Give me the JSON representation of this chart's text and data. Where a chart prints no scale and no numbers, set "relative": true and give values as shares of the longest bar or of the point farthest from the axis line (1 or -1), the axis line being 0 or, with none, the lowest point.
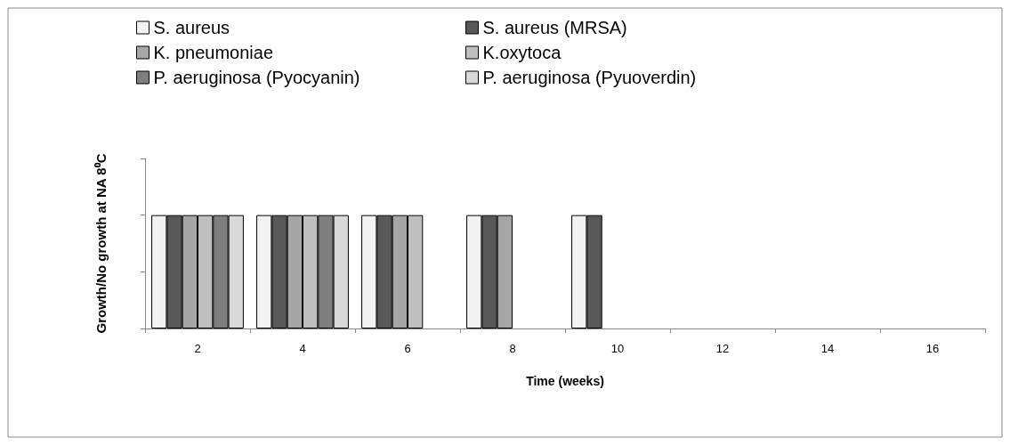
{
  "chart_data": {
    "type": "bar",
    "relative": true,
    "xlabel": "Time (weeks)",
    "ylabel": "Growth/No growth at NA 8⁰C",
    "legend": "top",
    "categories": [
      "2",
      "4",
      "6",
      "8",
      "10",
      "12",
      "14",
      "16"
    ],
    "series": [
      {
        "name": "S. aureus",
        "color": "#f2f2f2",
        "values": [
          1,
          1,
          1,
          1,
          1,
          0,
          0,
          0
        ]
      },
      {
        "name": "S. aureus (MRSA)",
        "color": "#595959",
        "values": [
          1,
          1,
          1,
          1,
          1,
          0,
          0,
          0
        ]
      },
      {
        "name": "K. pneumoniae",
        "color": "#a6a6a6",
        "values": [
          1,
          1,
          1,
          1,
          0,
          0,
          0,
          0
        ]
      },
      {
        "name": "K.oxytoca",
        "color": "#bfbfbf",
        "values": [
          1,
          1,
          1,
          0,
          0,
          0,
          0,
          0
        ]
      },
      {
        "name": "P. aeruginosa (Pyocyanin)",
        "color": "#7f7f7f",
        "values": [
          1,
          1,
          0,
          0,
          0,
          0,
          0,
          0
        ]
      },
      {
        "name": "P. aeruginosa (Pyuoverdin)",
        "color": "#d9d9d9",
        "values": [
          1,
          1,
          0,
          0,
          0,
          0,
          0,
          0
        ]
      }
    ]
  }
}
